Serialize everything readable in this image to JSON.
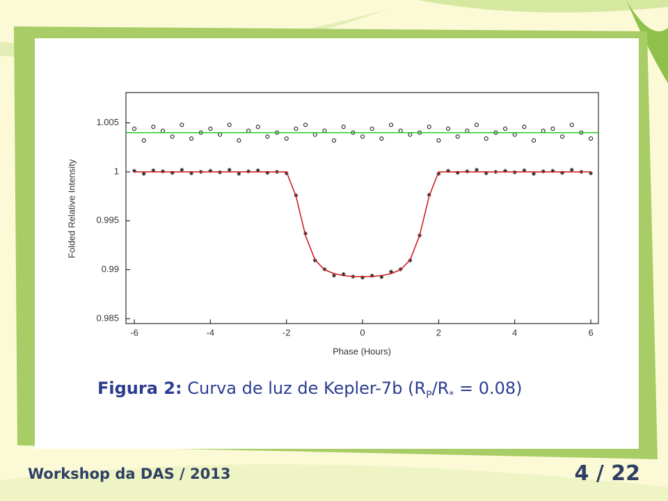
{
  "chart_data": {
    "type": "line",
    "xlabel": "Phase (Hours)",
    "ylabel": "Folded Relative Intensity",
    "xlim": [
      -6.22,
      6.2
    ],
    "ylim": [
      0.9845,
      1.0081
    ],
    "xticks": [
      -6,
      -4,
      -2,
      0,
      2,
      4,
      6
    ],
    "yticks": [
      0.985,
      0.99,
      0.995,
      1,
      1.005
    ],
    "x": [
      -6,
      -5.75,
      -5.5,
      -5.25,
      -5,
      -4.75,
      -4.5,
      -4.25,
      -4,
      -3.75,
      -3.5,
      -3.25,
      -3,
      -2.75,
      -2.5,
      -2.25,
      -2,
      -1.75,
      -1.5,
      -1.25,
      -1,
      -0.75,
      -0.5,
      -0.25,
      0,
      0.25,
      0.5,
      0.75,
      1,
      1.25,
      1.5,
      1.75,
      2,
      2.25,
      2.5,
      2.75,
      3,
      3.25,
      3.5,
      3.75,
      4,
      4.25,
      4.5,
      4.75,
      5,
      5.25,
      5.5,
      5.75,
      6
    ],
    "series": [
      {
        "color": "#000000",
        "style": "circles",
        "values": [
          1.0044,
          1.0032,
          1.0046,
          1.0042,
          1.0036,
          1.0048,
          1.0034,
          1.004,
          1.0044,
          1.0038,
          1.0048,
          1.0032,
          1.0042,
          1.0046,
          1.0036,
          1.004,
          1.0034,
          1.0044,
          1.0048,
          1.0038,
          1.0042,
          1.0032,
          1.0046,
          1.004,
          1.0036,
          1.0044,
          1.0034,
          1.0048,
          1.0042,
          1.0038,
          1.004,
          1.0046,
          1.0032,
          1.0044,
          1.0036,
          1.0042,
          1.0048,
          1.0034,
          1.004,
          1.0044,
          1.0038,
          1.0046,
          1.0032,
          1.0042,
          1.0044,
          1.0036,
          1.0048,
          1.004,
          1.0034
        ]
      },
      {
        "color": "#22cc22",
        "style": "line",
        "x": [
          -6.22,
          6.2
        ],
        "values": [
          1.004,
          1.004
        ]
      },
      {
        "color": "#222222",
        "style": "stars",
        "values": [
          1.0001,
          0.9998,
          1.00015,
          1.00005,
          0.9999,
          1.0002,
          0.99985,
          1.0,
          1.0001,
          0.99995,
          1.0002,
          0.9998,
          1.00005,
          1.00015,
          0.9999,
          1.0,
          0.99985,
          0.9976,
          0.9937,
          0.99095,
          0.99005,
          0.9894,
          0.98955,
          0.9893,
          0.9892,
          0.9894,
          0.98925,
          0.9898,
          0.99005,
          0.99095,
          0.9935,
          0.99765,
          0.9998,
          1.0001,
          0.9999,
          1.00005,
          1.0002,
          0.99985,
          1.0,
          1.0001,
          0.99995,
          1.00015,
          0.9998,
          1.00005,
          1.0001,
          0.9999,
          1.0002,
          1.0,
          0.99985
        ]
      },
      {
        "color": "#cc1111",
        "style": "line",
        "values": [
          1,
          1,
          1,
          1,
          1,
          1,
          1,
          1,
          1,
          1,
          1,
          1,
          1,
          1,
          1,
          1,
          1,
          0.9975,
          0.9935,
          0.991,
          0.99,
          0.9896,
          0.9894,
          0.9893,
          0.9893,
          0.9893,
          0.9894,
          0.9896,
          0.99,
          0.991,
          0.9935,
          0.9975,
          1,
          1,
          1,
          1,
          1,
          1,
          1,
          1,
          1,
          1,
          1,
          1,
          1,
          1,
          1,
          1,
          1
        ]
      }
    ]
  },
  "caption": {
    "label": "Figura 2:",
    "text": "Curva de luz de Kepler-7b (R",
    "sub1": "P",
    "mid": "/R",
    "sub2": "*",
    "tail": " = 0.08)"
  },
  "footer": {
    "left": "Workshop da DAS / 2013",
    "page": "4 / 22"
  }
}
